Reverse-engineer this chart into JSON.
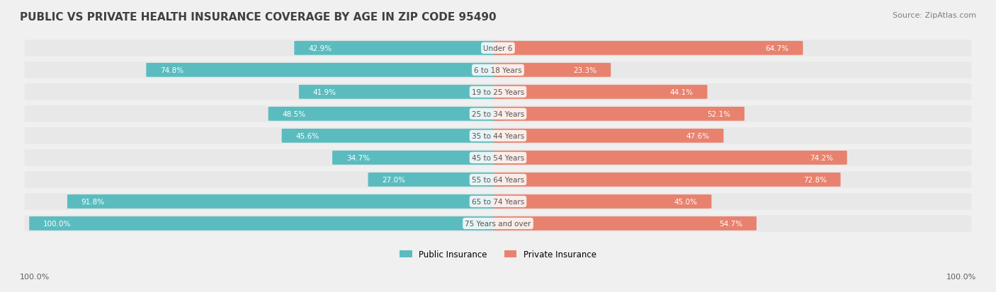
{
  "title": "PUBLIC VS PRIVATE HEALTH INSURANCE COVERAGE BY AGE IN ZIP CODE 95490",
  "source": "Source: ZipAtlas.com",
  "categories": [
    "Under 6",
    "6 to 18 Years",
    "19 to 25 Years",
    "25 to 34 Years",
    "35 to 44 Years",
    "45 to 54 Years",
    "55 to 64 Years",
    "65 to 74 Years",
    "75 Years and over"
  ],
  "public_values": [
    42.9,
    74.8,
    41.9,
    48.5,
    45.6,
    34.7,
    27.0,
    91.8,
    100.0
  ],
  "private_values": [
    64.7,
    23.3,
    44.1,
    52.1,
    47.6,
    74.2,
    72.8,
    45.0,
    54.7
  ],
  "public_color": "#5bbcbf",
  "private_color": "#e8826e",
  "bg_color": "#f0f0f0",
  "row_bg_color": "#e8e8e8",
  "title_color": "#404040",
  "label_white": "#ffffff",
  "label_dark": "#606060",
  "cat_label_color": "#555555",
  "bar_height": 0.62,
  "figsize": [
    14.06,
    4.14
  ],
  "dpi": 100
}
